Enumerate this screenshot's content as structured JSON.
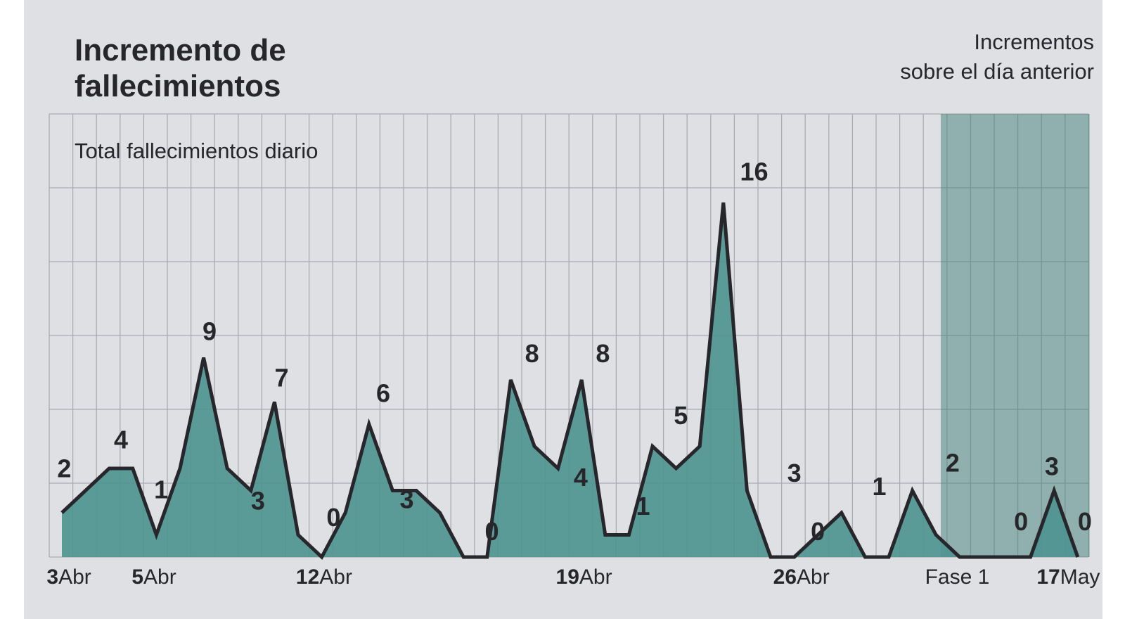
{
  "chart_data": {
    "type": "area",
    "title": "Incremento de fallecimientos",
    "title_lines": [
      "Incremento de",
      "fallecimientos"
    ],
    "subtitle": "Total fallecimientos diario",
    "legend_note_lines": [
      "Incrementos",
      "sobre el día anterior"
    ],
    "colors": {
      "background": "#dfe0e4",
      "area": "#4e9490",
      "line": "#26262b",
      "grid": "#a9abb0",
      "phase_shade": "#3f7f78"
    },
    "ylim": [
      0,
      20
    ],
    "grid": true,
    "x": [
      0,
      1,
      2,
      3,
      4,
      5,
      6,
      7,
      8,
      9,
      10,
      11,
      12,
      13,
      14,
      15,
      16,
      17,
      18,
      19,
      20,
      21,
      22,
      23,
      24,
      25,
      26,
      27,
      28,
      29,
      30,
      31,
      32,
      33,
      34,
      35,
      36,
      37,
      38,
      39,
      40,
      41,
      42,
      43
    ],
    "values": [
      2,
      3,
      4,
      4,
      1,
      4,
      9,
      4,
      3,
      7,
      1,
      0,
      2,
      6,
      3,
      3,
      2,
      0,
      0,
      8,
      5,
      4,
      8,
      1,
      1,
      5,
      4,
      5,
      16,
      3,
      0,
      0,
      1,
      2,
      0,
      0,
      3,
      1,
      0,
      0,
      0,
      0,
      3,
      0
    ],
    "x_ticks": [
      {
        "num": "3",
        "month": "Abr",
        "x": 0.3
      },
      {
        "num": "5",
        "month": "Abr",
        "x": 3.9
      },
      {
        "num": "12",
        "month": "Abr",
        "x": 11.1
      },
      {
        "num": "19",
        "month": "Abr",
        "x": 22.1
      },
      {
        "num": "26",
        "month": "Abr",
        "x": 31.3
      },
      {
        "num": "",
        "month": "Fase 1",
        "x": 37.9
      },
      {
        "num": "17",
        "month": "May",
        "x": 42.6
      }
    ],
    "phase": {
      "label": "Fase 1",
      "from": 37.2,
      "to": 43.5
    },
    "annotations": [
      {
        "text": "2",
        "x": 0.1,
        "y": 3.6
      },
      {
        "text": "4",
        "x": 2.5,
        "y": 4.9
      },
      {
        "text": "1",
        "x": 4.2,
        "y": 2.65
      },
      {
        "text": "9",
        "x": 6.25,
        "y": 9.8
      },
      {
        "text": "3",
        "x": 8.3,
        "y": 2.15
      },
      {
        "text": "7",
        "x": 9.3,
        "y": 7.7
      },
      {
        "text": "0",
        "x": 11.5,
        "y": 1.4
      },
      {
        "text": "6",
        "x": 13.6,
        "y": 7.0
      },
      {
        "text": "3",
        "x": 14.6,
        "y": 2.2
      },
      {
        "text": "0",
        "x": 18.2,
        "y": 0.76
      },
      {
        "text": "8",
        "x": 19.9,
        "y": 8.8
      },
      {
        "text": "4",
        "x": 21.96,
        "y": 3.2
      },
      {
        "text": "8",
        "x": 22.9,
        "y": 8.8
      },
      {
        "text": "1",
        "x": 24.6,
        "y": 1.9
      },
      {
        "text": "5",
        "x": 26.2,
        "y": 6.0
      },
      {
        "text": "16",
        "x": 29.3,
        "y": 17.0
      },
      {
        "text": "3",
        "x": 31.0,
        "y": 3.4
      },
      {
        "text": "0",
        "x": 32.0,
        "y": 0.76
      },
      {
        "text": "1",
        "x": 34.6,
        "y": 2.8
      },
      {
        "text": "2",
        "x": 37.7,
        "y": 3.85
      },
      {
        "text": "0",
        "x": 40.6,
        "y": 1.2
      },
      {
        "text": "3",
        "x": 41.9,
        "y": 3.7
      },
      {
        "text": "0",
        "x": 43.3,
        "y": 1.2
      }
    ]
  }
}
